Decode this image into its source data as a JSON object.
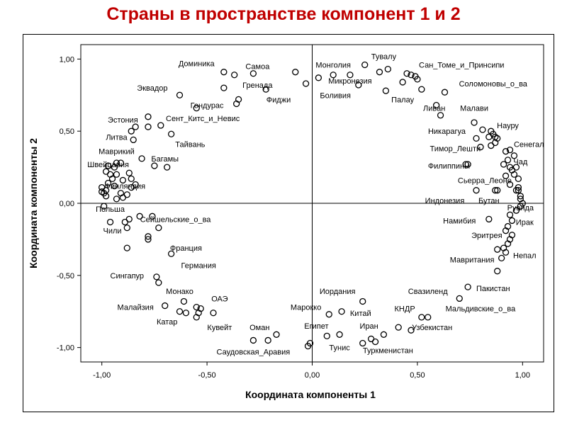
{
  "title": "Страны в пространстве компонент 1 и 2",
  "chart_data": {
    "type": "scatter",
    "title": "Страны в пространстве компонент 1 и 2",
    "xlabel": "Координата компоненты 1",
    "ylabel": "Координата компоненты 2",
    "xlim": [
      -1.1,
      1.1
    ],
    "ylim": [
      -1.1,
      1.1
    ],
    "xticks": [
      "-1,00",
      "-0,50",
      "0,00",
      "0,50",
      "1,00"
    ],
    "yticks": [
      "1,00",
      "0,50",
      "0,00",
      "-0,50",
      "-1,00"
    ],
    "reference_lines": {
      "x": 0,
      "y": 0
    },
    "grid": false,
    "legend": "none",
    "marker_color": "#000000",
    "points": [
      {
        "x": -0.42,
        "y": 0.91
      },
      {
        "x": -0.37,
        "y": 0.89
      },
      {
        "x": -0.28,
        "y": 0.9
      },
      {
        "x": -0.42,
        "y": 0.8
      },
      {
        "x": -0.35,
        "y": 0.72
      },
      {
        "x": -0.36,
        "y": 0.69
      },
      {
        "x": -0.22,
        "y": 0.79
      },
      {
        "x": -0.63,
        "y": 0.75
      },
      {
        "x": -0.55,
        "y": 0.66
      },
      {
        "x": -0.08,
        "y": 0.91
      },
      {
        "x": -0.03,
        "y": 0.83
      },
      {
        "x": 0.03,
        "y": 0.87
      },
      {
        "x": 0.1,
        "y": 0.89
      },
      {
        "x": 0.18,
        "y": 0.89
      },
      {
        "x": 0.25,
        "y": 0.96
      },
      {
        "x": 0.32,
        "y": 0.91
      },
      {
        "x": 0.36,
        "y": 0.93
      },
      {
        "x": 0.22,
        "y": 0.82
      },
      {
        "x": 0.35,
        "y": 0.78
      },
      {
        "x": 0.43,
        "y": 0.84
      },
      {
        "x": 0.45,
        "y": 0.9
      },
      {
        "x": 0.47,
        "y": 0.89
      },
      {
        "x": 0.49,
        "y": 0.88
      },
      {
        "x": 0.5,
        "y": 0.86
      },
      {
        "x": 0.52,
        "y": 0.79
      },
      {
        "x": 0.63,
        "y": 0.77
      },
      {
        "x": 0.59,
        "y": 0.68
      },
      {
        "x": 0.61,
        "y": 0.61
      },
      {
        "x": 0.77,
        "y": 0.56
      },
      {
        "x": 0.81,
        "y": 0.51
      },
      {
        "x": 0.85,
        "y": 0.5
      },
      {
        "x": 0.86,
        "y": 0.48
      },
      {
        "x": 0.84,
        "y": 0.46
      },
      {
        "x": 0.87,
        "y": 0.46
      },
      {
        "x": 0.88,
        "y": 0.45
      },
      {
        "x": 0.78,
        "y": 0.45
      },
      {
        "x": 0.8,
        "y": 0.39
      },
      {
        "x": 0.85,
        "y": 0.4
      },
      {
        "x": 0.87,
        "y": 0.42
      },
      {
        "x": 0.92,
        "y": 0.36
      },
      {
        "x": 0.94,
        "y": 0.37
      },
      {
        "x": 0.96,
        "y": 0.33
      },
      {
        "x": 0.93,
        "y": 0.3
      },
      {
        "x": 0.91,
        "y": 0.27
      },
      {
        "x": 0.94,
        "y": 0.25
      },
      {
        "x": 0.95,
        "y": 0.23
      },
      {
        "x": 0.97,
        "y": 0.25
      },
      {
        "x": 0.96,
        "y": 0.2
      },
      {
        "x": 0.98,
        "y": 0.17
      },
      {
        "x": 0.94,
        "y": 0.13
      },
      {
        "x": 0.92,
        "y": 0.19
      },
      {
        "x": 0.73,
        "y": 0.27
      },
      {
        "x": 0.74,
        "y": 0.27
      },
      {
        "x": 0.98,
        "y": 0.11
      },
      {
        "x": 0.97,
        "y": 0.09
      },
      {
        "x": 0.99,
        "y": 0.05
      },
      {
        "x": 0.99,
        "y": 0.03
      },
      {
        "x": 0.98,
        "y": 0.09
      },
      {
        "x": 1.0,
        "y": 0.0
      },
      {
        "x": 0.99,
        "y": -0.02
      },
      {
        "x": 0.97,
        "y": -0.05
      },
      {
        "x": 0.94,
        "y": -0.08
      },
      {
        "x": 0.95,
        "y": -0.12
      },
      {
        "x": 0.93,
        "y": -0.16
      },
      {
        "x": 0.92,
        "y": -0.19
      },
      {
        "x": 0.95,
        "y": -0.22
      },
      {
        "x": 0.94,
        "y": -0.25
      },
      {
        "x": 0.93,
        "y": -0.28
      },
      {
        "x": 0.91,
        "y": -0.31
      },
      {
        "x": 0.88,
        "y": -0.32
      },
      {
        "x": 0.92,
        "y": -0.34
      },
      {
        "x": 0.9,
        "y": -0.38
      },
      {
        "x": 0.88,
        "y": -0.47
      },
      {
        "x": 0.84,
        "y": -0.11
      },
      {
        "x": 0.87,
        "y": 0.09
      },
      {
        "x": 0.88,
        "y": 0.09
      },
      {
        "x": 0.78,
        "y": 0.09
      },
      {
        "x": -0.98,
        "y": 0.09
      },
      {
        "x": -1.0,
        "y": 0.11
      },
      {
        "x": -0.98,
        "y": 0.05
      },
      {
        "x": -0.99,
        "y": 0.07
      },
      {
        "x": -1.0,
        "y": 0.08
      },
      {
        "x": -0.97,
        "y": 0.14
      },
      {
        "x": -0.95,
        "y": 0.17
      },
      {
        "x": -0.93,
        "y": 0.2
      },
      {
        "x": -0.94,
        "y": 0.12
      },
      {
        "x": -0.91,
        "y": 0.07
      },
      {
        "x": -0.93,
        "y": 0.03
      },
      {
        "x": -0.9,
        "y": 0.04
      },
      {
        "x": -0.96,
        "y": 0.2
      },
      {
        "x": -0.98,
        "y": 0.22
      },
      {
        "x": -0.97,
        "y": 0.26
      },
      {
        "x": -0.94,
        "y": 0.25
      },
      {
        "x": -0.93,
        "y": 0.28
      },
      {
        "x": -0.91,
        "y": 0.28
      },
      {
        "x": -0.87,
        "y": 0.21
      },
      {
        "x": -0.86,
        "y": 0.17
      },
      {
        "x": -0.84,
        "y": 0.13
      },
      {
        "x": -0.9,
        "y": 0.16
      },
      {
        "x": -0.86,
        "y": 0.11
      },
      {
        "x": -0.88,
        "y": 0.06
      },
      {
        "x": -0.81,
        "y": 0.31
      },
      {
        "x": -0.75,
        "y": 0.26
      },
      {
        "x": -0.69,
        "y": 0.25
      },
      {
        "x": -0.85,
        "y": 0.44
      },
      {
        "x": -0.86,
        "y": 0.5
      },
      {
        "x": -0.84,
        "y": 0.53
      },
      {
        "x": -0.78,
        "y": 0.53
      },
      {
        "x": -0.78,
        "y": 0.6
      },
      {
        "x": -0.72,
        "y": 0.54
      },
      {
        "x": -0.67,
        "y": 0.48
      },
      {
        "x": -0.99,
        "y": -0.02
      },
      {
        "x": -0.96,
        "y": -0.13
      },
      {
        "x": -0.89,
        "y": -0.13
      },
      {
        "x": -0.88,
        "y": -0.17
      },
      {
        "x": -0.87,
        "y": -0.11
      },
      {
        "x": -0.82,
        "y": -0.09
      },
      {
        "x": -0.76,
        "y": -0.09
      },
      {
        "x": -0.73,
        "y": -0.17
      },
      {
        "x": -0.78,
        "y": -0.23
      },
      {
        "x": -0.78,
        "y": -0.25
      },
      {
        "x": -0.88,
        "y": -0.31
      },
      {
        "x": -0.67,
        "y": -0.35
      },
      {
        "x": -0.74,
        "y": -0.51
      },
      {
        "x": -0.73,
        "y": -0.55
      },
      {
        "x": -0.61,
        "y": -0.68
      },
      {
        "x": -0.7,
        "y": -0.71
      },
      {
        "x": -0.63,
        "y": -0.75
      },
      {
        "x": -0.6,
        "y": -0.76
      },
      {
        "x": -0.55,
        "y": -0.72
      },
      {
        "x": -0.53,
        "y": -0.73
      },
      {
        "x": -0.54,
        "y": -0.76
      },
      {
        "x": -0.55,
        "y": -0.79
      },
      {
        "x": -0.47,
        "y": -0.76
      },
      {
        "x": -0.28,
        "y": -0.95
      },
      {
        "x": -0.21,
        "y": -0.95
      },
      {
        "x": -0.17,
        "y": -0.91
      },
      {
        "x": -0.01,
        "y": -0.97
      },
      {
        "x": -0.02,
        "y": -0.99
      },
      {
        "x": 0.08,
        "y": -0.77
      },
      {
        "x": 0.14,
        "y": -0.75
      },
      {
        "x": 0.24,
        "y": -0.68
      },
      {
        "x": 0.07,
        "y": -0.92
      },
      {
        "x": 0.13,
        "y": -0.91
      },
      {
        "x": 0.24,
        "y": -0.97
      },
      {
        "x": 0.28,
        "y": -0.94
      },
      {
        "x": 0.3,
        "y": -0.96
      },
      {
        "x": 0.34,
        "y": -0.91
      },
      {
        "x": 0.41,
        "y": -0.86
      },
      {
        "x": 0.47,
        "y": -0.88
      },
      {
        "x": 0.52,
        "y": -0.79
      },
      {
        "x": 0.55,
        "y": -0.79
      },
      {
        "x": 0.7,
        "y": -0.66
      },
      {
        "x": 0.74,
        "y": -0.58
      }
    ],
    "labels": [
      {
        "text": "Доминика",
        "x": -0.55,
        "y": 0.97
      },
      {
        "text": "Самоа",
        "x": -0.26,
        "y": 0.95
      },
      {
        "text": "Гренада",
        "x": -0.26,
        "y": 0.82
      },
      {
        "text": "Эквадор",
        "x": -0.76,
        "y": 0.8
      },
      {
        "text": "Фиджи",
        "x": -0.16,
        "y": 0.72
      },
      {
        "text": "Гондурас",
        "x": -0.5,
        "y": 0.68
      },
      {
        "text": "Сент_Китс_и_Невис",
        "x": -0.52,
        "y": 0.59
      },
      {
        "text": "Эстония",
        "x": -0.9,
        "y": 0.58
      },
      {
        "text": "Литва",
        "x": -0.93,
        "y": 0.46
      },
      {
        "text": "Тайвань",
        "x": -0.58,
        "y": 0.41
      },
      {
        "text": "Маврикий",
        "x": -0.93,
        "y": 0.36
      },
      {
        "text": "Багамы",
        "x": -0.7,
        "y": 0.31
      },
      {
        "text": "Швейцария",
        "x": -0.97,
        "y": 0.27
      },
      {
        "text": "Финляндия",
        "x": -0.89,
        "y": 0.12
      },
      {
        "text": "Польша",
        "x": -0.96,
        "y": -0.04
      },
      {
        "text": "Сейшельские_о_ва",
        "x": -0.65,
        "y": -0.11
      },
      {
        "text": "Чили",
        "x": -0.95,
        "y": -0.19
      },
      {
        "text": "Франция",
        "x": -0.6,
        "y": -0.31
      },
      {
        "text": "Германия",
        "x": -0.54,
        "y": -0.43
      },
      {
        "text": "Сингапур",
        "x": -0.88,
        "y": -0.5
      },
      {
        "text": "Монако",
        "x": -0.63,
        "y": -0.61
      },
      {
        "text": "ОАЭ",
        "x": -0.44,
        "y": -0.66
      },
      {
        "text": "Малайзия",
        "x": -0.84,
        "y": -0.72
      },
      {
        "text": "Катар",
        "x": -0.69,
        "y": -0.82
      },
      {
        "text": "Кувейт",
        "x": -0.44,
        "y": -0.86
      },
      {
        "text": "Оман",
        "x": -0.25,
        "y": -0.86
      },
      {
        "text": "Саудовская_Аравия",
        "x": -0.28,
        "y": -1.03
      },
      {
        "text": "Монголия",
        "x": 0.1,
        "y": 0.96
      },
      {
        "text": "Тувалу",
        "x": 0.34,
        "y": 1.02
      },
      {
        "text": "Сан_Томе_и_Принсипи",
        "x": 0.71,
        "y": 0.96
      },
      {
        "text": "Микронезия",
        "x": 0.18,
        "y": 0.85
      },
      {
        "text": "Соломоновы_о_ва",
        "x": 0.86,
        "y": 0.83
      },
      {
        "text": "Боливия",
        "x": 0.11,
        "y": 0.75
      },
      {
        "text": "Палау",
        "x": 0.43,
        "y": 0.72
      },
      {
        "text": "Ливан",
        "x": 0.58,
        "y": 0.66
      },
      {
        "text": "Малави",
        "x": 0.77,
        "y": 0.66
      },
      {
        "text": "Науру",
        "x": 0.93,
        "y": 0.54
      },
      {
        "text": "Никарагуа",
        "x": 0.64,
        "y": 0.5
      },
      {
        "text": "Сенегал",
        "x": 1.03,
        "y": 0.41
      },
      {
        "text": "Тимор_Лешти",
        "x": 0.68,
        "y": 0.38
      },
      {
        "text": "Чад",
        "x": 0.99,
        "y": 0.29
      },
      {
        "text": "Филиппины",
        "x": 0.65,
        "y": 0.26
      },
      {
        "text": "Сьерра_Леоне",
        "x": 0.82,
        "y": 0.16
      },
      {
        "text": "Индонезия",
        "x": 0.63,
        "y": 0.02
      },
      {
        "text": "Бутан",
        "x": 0.84,
        "y": 0.02
      },
      {
        "text": "Руанда",
        "x": 0.99,
        "y": -0.03
      },
      {
        "text": "Намибия",
        "x": 0.7,
        "y": -0.12
      },
      {
        "text": "Ирак",
        "x": 1.01,
        "y": -0.13
      },
      {
        "text": "Эритрея",
        "x": 0.83,
        "y": -0.22
      },
      {
        "text": "Мавритания",
        "x": 0.76,
        "y": -0.39
      },
      {
        "text": "Непал",
        "x": 1.01,
        "y": -0.36
      },
      {
        "text": "Пакистан",
        "x": 0.86,
        "y": -0.59
      },
      {
        "text": "Свазиленд",
        "x": 0.55,
        "y": -0.61
      },
      {
        "text": "Иордания",
        "x": 0.12,
        "y": -0.61
      },
      {
        "text": "КНДР",
        "x": 0.44,
        "y": -0.73
      },
      {
        "text": "Мальдивские_о_ва",
        "x": 0.8,
        "y": -0.73
      },
      {
        "text": "Марокко",
        "x": -0.03,
        "y": -0.72
      },
      {
        "text": "Китай",
        "x": 0.23,
        "y": -0.76
      },
      {
        "text": "Египет",
        "x": 0.02,
        "y": -0.85
      },
      {
        "text": "Иран",
        "x": 0.27,
        "y": -0.85
      },
      {
        "text": "Узбекистан",
        "x": 0.57,
        "y": -0.86
      },
      {
        "text": "Тунис",
        "x": 0.13,
        "y": -1.0
      },
      {
        "text": "Туркменистан",
        "x": 0.36,
        "y": -1.02
      }
    ]
  }
}
